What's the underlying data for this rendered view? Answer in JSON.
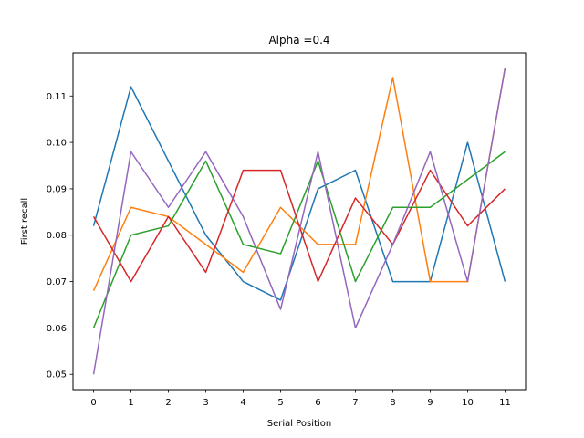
{
  "chart_data": {
    "type": "line",
    "title": "Alpha =0.4",
    "xlabel": "Serial Position",
    "ylabel": "First recall",
    "xlim": [
      -0.55,
      11.55
    ],
    "ylim": [
      0.0467,
      0.1193
    ],
    "grid": false,
    "x": [
      0,
      1,
      2,
      3,
      4,
      5,
      6,
      7,
      8,
      9,
      10,
      11
    ],
    "xticks": [
      0,
      1,
      2,
      3,
      4,
      5,
      6,
      7,
      8,
      9,
      10,
      11
    ],
    "xtick_labels": [
      "0",
      "1",
      "2",
      "3",
      "4",
      "5",
      "6",
      "7",
      "8",
      "9",
      "10",
      "11"
    ],
    "yticks": [
      0.05,
      0.06,
      0.07,
      0.08,
      0.09,
      0.1,
      0.11
    ],
    "ytick_labels": [
      "0.05",
      "0.06",
      "0.07",
      "0.08",
      "0.09",
      "0.10",
      "0.11"
    ],
    "series": [
      {
        "color": "#1f77b4",
        "values": [
          0.082,
          0.112,
          0.096,
          0.08,
          0.07,
          0.066,
          0.09,
          0.094,
          0.07,
          0.07,
          0.1,
          0.07
        ]
      },
      {
        "color": "#ff7f0e",
        "values": [
          0.068,
          0.086,
          0.084,
          0.078,
          0.072,
          0.086,
          0.078,
          0.078,
          0.114,
          0.07,
          0.07,
          0.116
        ]
      },
      {
        "color": "#2ca02c",
        "values": [
          0.06,
          0.08,
          0.082,
          0.096,
          0.078,
          0.076,
          0.096,
          0.07,
          0.086,
          0.086,
          0.092,
          0.098
        ]
      },
      {
        "color": "#d62728",
        "values": [
          0.084,
          0.07,
          0.084,
          0.072,
          0.094,
          0.094,
          0.07,
          0.088,
          0.078,
          0.094,
          0.082,
          0.09
        ]
      },
      {
        "color": "#9467bd",
        "values": [
          0.05,
          0.098,
          0.086,
          0.098,
          0.084,
          0.064,
          0.098,
          0.06,
          0.078,
          0.098,
          0.07,
          0.116
        ]
      }
    ]
  }
}
